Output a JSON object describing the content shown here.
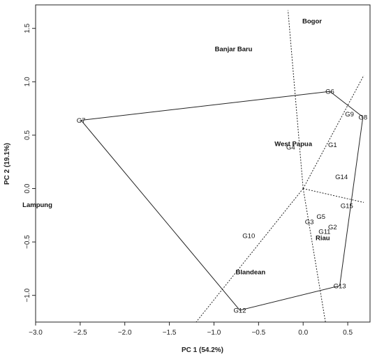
{
  "chart_data": {
    "type": "scatter",
    "xlabel": "PC 1 (54.2%)",
    "ylabel": "PC 2 (19.1%)",
    "xlim": [
      -3.0,
      0.75
    ],
    "ylim": [
      -1.25,
      1.72
    ],
    "xticks": [
      -3.0,
      -2.5,
      -2.0,
      -1.5,
      -1.0,
      -0.5,
      0.0,
      0.5
    ],
    "yticks": [
      -1.0,
      -0.5,
      0.0,
      0.5,
      1.0,
      1.5
    ],
    "xtick_labels": [
      "−3.0",
      "−2.5",
      "−2.0",
      "−1.5",
      "−1.0",
      "−0.5",
      "0.0",
      "0.5"
    ],
    "ytick_labels": [
      "−1.0",
      "−0.5",
      "0.0",
      "0.5",
      "1.0",
      "1.5"
    ],
    "genotypes": [
      {
        "label": "G1",
        "x": 0.33,
        "y": 0.41
      },
      {
        "label": "G2",
        "x": 0.33,
        "y": -0.36
      },
      {
        "label": "G3",
        "x": 0.07,
        "y": -0.31
      },
      {
        "label": "G4",
        "x": -0.14,
        "y": 0.39
      },
      {
        "label": "G5",
        "x": 0.2,
        "y": -0.26
      },
      {
        "label": "G6",
        "x": 0.3,
        "y": 0.91
      },
      {
        "label": "G7",
        "x": -2.49,
        "y": 0.64
      },
      {
        "label": "G8",
        "x": 0.67,
        "y": 0.67
      },
      {
        "label": "G9",
        "x": 0.52,
        "y": 0.7
      },
      {
        "label": "G10",
        "x": -0.61,
        "y": -0.44
      },
      {
        "label": "G11",
        "x": 0.24,
        "y": -0.4
      },
      {
        "label": "G12",
        "x": -0.71,
        "y": -1.14
      },
      {
        "label": "G13",
        "x": 0.41,
        "y": -0.91
      },
      {
        "label": "G14",
        "x": 0.43,
        "y": 0.11
      },
      {
        "label": "G15",
        "x": 0.49,
        "y": -0.16
      }
    ],
    "environments": [
      {
        "label": "Bogor",
        "x": 0.1,
        "y": 1.57
      },
      {
        "label": "Banjar Baru",
        "x": -0.78,
        "y": 1.31
      },
      {
        "label": "West Papua",
        "x": -0.11,
        "y": 0.42
      },
      {
        "label": "Lampung",
        "x": -2.98,
        "y": -0.15
      },
      {
        "label": "Riau",
        "x": 0.22,
        "y": -0.46
      },
      {
        "label": "Blandean",
        "x": -0.59,
        "y": -0.78
      }
    ],
    "polygon": [
      "G6",
      "G8",
      "G13",
      "G12",
      "G7"
    ],
    "sector_lines": [
      {
        "from": [
          0.0,
          0.0
        ],
        "to": [
          -0.17,
          1.67
        ]
      },
      {
        "from": [
          0.0,
          0.0
        ],
        "to": [
          0.68,
          1.06
        ]
      },
      {
        "from": [
          0.0,
          0.0
        ],
        "to": [
          0.68,
          -0.13
        ]
      },
      {
        "from": [
          0.0,
          0.0
        ],
        "to": [
          0.25,
          -1.25
        ]
      },
      {
        "from": [
          0.0,
          0.0
        ],
        "to": [
          -1.2,
          -1.25
        ]
      }
    ]
  }
}
